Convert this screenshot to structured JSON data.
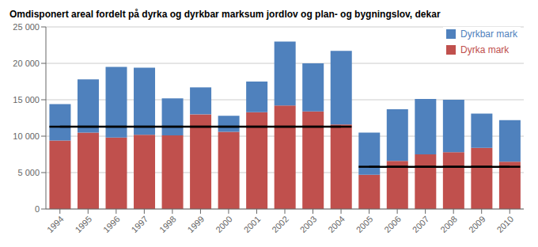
{
  "chart_data": {
    "type": "bar",
    "title": "Omdisponert areal fordelt på dyrka og dyrkbar marksum jordlov og plan- og bygningslov, dekar",
    "categories": [
      "1994",
      "1995",
      "1996",
      "1997",
      "1998",
      "1999",
      "2000",
      "2001",
      "2002",
      "2003",
      "2004",
      "2005",
      "2006",
      "2007",
      "2008",
      "2009",
      "2010"
    ],
    "stacked": true,
    "series": [
      {
        "name": "Dyrka mark",
        "color": "#c0504d",
        "values": [
          9400,
          10500,
          9800,
          10200,
          10100,
          13000,
          10600,
          13300,
          14200,
          13400,
          11600,
          4700,
          6600,
          7500,
          7800,
          8400,
          6500
        ]
      },
      {
        "name": "Dyrkbar mark",
        "color": "#4f81bd",
        "values": [
          5000,
          7300,
          9700,
          9200,
          5100,
          3700,
          2200,
          4200,
          8800,
          6600,
          10100,
          5800,
          7100,
          7600,
          7200,
          4700,
          5700
        ]
      },
      {
        "type": "line",
        "color": "#000000",
        "values": [
          11300,
          11300,
          11300,
          11300,
          11300,
          11300,
          11300,
          11300,
          11300,
          11300,
          11300,
          null,
          null,
          null,
          null,
          null,
          null
        ]
      },
      {
        "type": "line",
        "color": "#000000",
        "values": [
          null,
          null,
          null,
          null,
          null,
          null,
          null,
          null,
          null,
          null,
          null,
          5800,
          5800,
          5800,
          5800,
          5800,
          5800
        ]
      }
    ],
    "ylim": [
      0,
      25000
    ],
    "yticks": [
      0,
      {
        "value": 5000,
        "label": "5 000"
      },
      {
        "value": 10000,
        "label": "10 000"
      },
      {
        "value": 15000,
        "label": "15 000"
      },
      {
        "value": 20000,
        "label": "20 000"
      },
      {
        "value": 25000,
        "label": "25 000"
      }
    ],
    "grid": true,
    "legend": "upper right"
  }
}
